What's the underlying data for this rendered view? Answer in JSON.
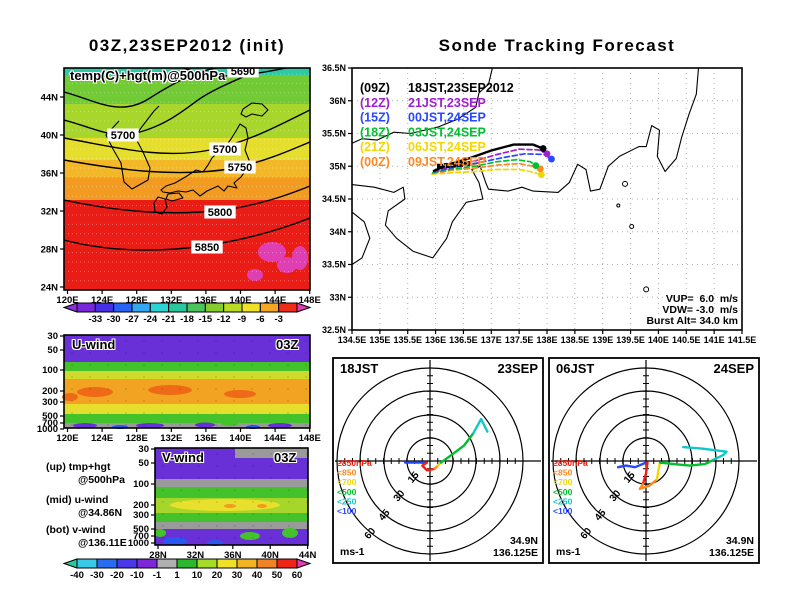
{
  "chart_data": [
    {
      "name": "map-500hpa",
      "type": "heatmap",
      "title": "03Z,23SEP2012 (init)",
      "field_label": "temp(C)+hgt(m)@500hPa",
      "x_ticks": [
        "120E",
        "124E",
        "128E",
        "132E",
        "136E",
        "140E",
        "144E",
        "148E"
      ],
      "y_ticks": [
        "44N",
        "40N",
        "36N",
        "32N",
        "28N",
        "24N"
      ],
      "contour_labels": [
        "5690",
        "5700",
        "5700",
        "5750",
        "5800",
        "5850"
      ],
      "height_contours_m": [
        5690,
        5700,
        5750,
        5800,
        5850
      ],
      "temp_range_c": "-33 to -3",
      "colorbar": {
        "units": "degC",
        "labels": [
          "-33",
          "-30",
          "-27",
          "-24",
          "-21",
          "-18",
          "-15",
          "-12",
          "-9",
          "-6",
          "-3"
        ],
        "arrow_left_color": "#8a30e0",
        "segment_colors": [
          "#7828d8",
          "#4530e8",
          "#2a62f5",
          "#35a6f2",
          "#2cd4d4",
          "#2ac89e",
          "#4cc45e",
          "#84cc30",
          "#b8dc24",
          "#f0e028",
          "#f5a623",
          "#ef2c1a"
        ],
        "arrow_right_color": "#e03cb8"
      }
    },
    {
      "name": "sonde-tracking",
      "type": "line",
      "title": "Sonde Tracking Forecast",
      "x_ticks": [
        "134.5E",
        "135E",
        "135.5E",
        "136E",
        "136.5E",
        "137E",
        "137.5E",
        "138E",
        "138.5E",
        "139E",
        "139.5E",
        "140E",
        "140.5E",
        "141E",
        "141.5E"
      ],
      "y_ticks": [
        "36.5N",
        "36N",
        "35.5N",
        "35N",
        "34.5N",
        "34N",
        "33.5N",
        "33N",
        "32.5N"
      ],
      "legend": [
        {
          "code": "(09Z)",
          "label": "18JST,23SEP2012",
          "color": "#000000"
        },
        {
          "code": "(12Z)",
          "label": "21JST,23SEP",
          "color": "#a020d0"
        },
        {
          "code": "(15Z)",
          "label": "00JST,24SEP",
          "color": "#2848ff"
        },
        {
          "code": "(18Z)",
          "label": "03JST,24SEP",
          "color": "#00c030"
        },
        {
          "code": "(21Z)",
          "label": "06JST,24SEP",
          "color": "#f0d800"
        },
        {
          "code": "(00Z)",
          "label": "09JST,24SEP",
          "color": "#ff8820"
        }
      ],
      "trajectories": [
        {
          "name": "21JST",
          "color": "#f0d800",
          "dashed": true,
          "points": [
            [
              135.93,
              34.88
            ],
            [
              136.3,
              34.9
            ],
            [
              136.7,
              34.92
            ],
            [
              137.1,
              34.95
            ],
            [
              137.5,
              34.95
            ],
            [
              137.75,
              34.91
            ],
            [
              137.9,
              34.87
            ]
          ]
        },
        {
          "name": "09JST",
          "color": "#ff8820",
          "dashed": true,
          "points": [
            [
              135.95,
              34.89
            ],
            [
              136.3,
              34.94
            ],
            [
              136.7,
              34.97
            ],
            [
              137.15,
              35.02
            ],
            [
              137.5,
              35.04
            ],
            [
              137.75,
              35.0
            ],
            [
              137.88,
              34.96
            ]
          ]
        },
        {
          "name": "03JST",
          "color": "#00c030",
          "dashed": true,
          "points": [
            [
              135.95,
              34.9
            ],
            [
              136.3,
              34.96
            ],
            [
              136.7,
              35.0
            ],
            [
              137.1,
              35.07
            ],
            [
              137.45,
              35.1
            ],
            [
              137.7,
              35.07
            ],
            [
              137.8,
              35.01
            ]
          ]
        },
        {
          "name": "00JST",
          "color": "#2848ff",
          "dashed": true,
          "points": [
            [
              135.97,
              34.91
            ],
            [
              136.35,
              34.99
            ],
            [
              136.75,
              35.05
            ],
            [
              137.2,
              35.13
            ],
            [
              137.6,
              35.19
            ],
            [
              137.95,
              35.18
            ],
            [
              138.08,
              35.11
            ]
          ]
        },
        {
          "name": "21JST23",
          "color": "#a020d0",
          "dashed": true,
          "points": [
            [
              135.97,
              34.92
            ],
            [
              136.3,
              35.0
            ],
            [
              136.7,
              35.08
            ],
            [
              137.1,
              35.18
            ],
            [
              137.5,
              35.26
            ],
            [
              137.85,
              35.25
            ],
            [
              138.0,
              35.19
            ]
          ]
        },
        {
          "name": "18JST",
          "color": "#000000",
          "dashed": false,
          "points": [
            [
              135.97,
              34.93
            ],
            [
              136.25,
              35.03
            ],
            [
              136.6,
              35.12
            ],
            [
              137.0,
              35.24
            ],
            [
              137.4,
              35.33
            ],
            [
              137.75,
              35.33
            ],
            [
              137.93,
              35.27
            ]
          ]
        }
      ],
      "launch_markers": [
        [
          136.08,
          35.0
        ],
        [
          136.2,
          35.01
        ],
        [
          136.32,
          35.02
        ],
        [
          136.44,
          35.03
        ],
        [
          136.56,
          35.04
        ]
      ],
      "annotations": {
        "vup": "VUP=  6.0  m/s",
        "vdw": "VDW= -3.0  m/s",
        "burst": "Burst Alt= 34.0 km"
      }
    },
    {
      "name": "u-wind-section",
      "type": "heatmap",
      "label": "U-wind",
      "time": "03Z",
      "x_ticks": [
        "120E",
        "124E",
        "128E",
        "132E",
        "136E",
        "140E",
        "144E",
        "148E"
      ],
      "y_ticks": [
        "30",
        "50",
        "100",
        "200",
        "300",
        "500",
        "700",
        "1000"
      ],
      "approx_bands": [
        {
          "pressure_hpa": "30-80",
          "u_ms": "-20 to -10"
        },
        {
          "pressure_hpa": "100",
          "u_ms": "1 to 10"
        },
        {
          "pressure_hpa": "150-300",
          "u_ms": "30 to 50"
        },
        {
          "pressure_hpa": "300-500",
          "u_ms": "20 to 30"
        },
        {
          "pressure_hpa": "500-700",
          "u_ms": "1 to 10"
        },
        {
          "pressure_hpa": "700-1000",
          "u_ms": "-10 to 1"
        }
      ]
    },
    {
      "name": "v-wind-section",
      "type": "heatmap",
      "label": "V-wind",
      "time": "03Z",
      "x_ticks": [
        "28N",
        "32N",
        "36N",
        "40N",
        "44N"
      ],
      "y_ticks": [
        "30",
        "50",
        "100",
        "200",
        "300",
        "500",
        "700",
        "1000"
      ],
      "approx_bands": [
        {
          "pressure_hpa": "30-100",
          "v_ms": "-10 to -1"
        },
        {
          "pressure_hpa": "100-150",
          "v_ms": "-1 to 10"
        },
        {
          "pressure_hpa": "200-300",
          "v_ms": "10 to 30"
        },
        {
          "pressure_hpa": "300-500",
          "v_ms": "1 to 10"
        },
        {
          "pressure_hpa": "500-1000",
          "v_ms": "-10 to -1"
        }
      ],
      "colorbar": {
        "units": "m/s",
        "labels": [
          "-40",
          "-30",
          "-20",
          "-10",
          "-1",
          "1",
          "10",
          "20",
          "30",
          "40",
          "50",
          "60"
        ],
        "arrow_left_color": "#2ac89e",
        "segment_colors": [
          "#38c8e8",
          "#2a6cf0",
          "#4838e8",
          "#7c28d8",
          "#b0b0b0",
          "#2cb82c",
          "#a4dc28",
          "#f0e028",
          "#f0b424",
          "#f08424",
          "#ee2418"
        ],
        "arrow_right_color": "#e03cb8"
      }
    },
    {
      "name": "hodograph-18jst",
      "type": "scatter",
      "time": "18JST",
      "date": "23SEP",
      "unit": "ms-1",
      "site": {
        "lat": "34.9N",
        "lon": "136.125E"
      },
      "ring_labels": [
        "15",
        "30",
        "45",
        "60"
      ],
      "legend": [
        {
          "label": "≥850hPa",
          "color": "#ee2010"
        },
        {
          "label": "<850",
          "color": "#ff8820"
        },
        {
          "label": "<700",
          "color": "#f0d800"
        },
        {
          "label": "<500",
          "color": "#00c030"
        },
        {
          "label": "<250",
          "color": "#10c8c8"
        },
        {
          "label": "<100",
          "color": "#2848ff"
        }
      ],
      "trace": [
        {
          "level": "<100",
          "color": "#2848ff",
          "points": [
            [
              -16,
              -1
            ],
            [
              -7,
              -1
            ],
            [
              -2,
              -1
            ]
          ]
        },
        {
          "level": ">=850",
          "color": "#ee2010",
          "points": [
            [
              -2,
              -1
            ],
            [
              -5,
              -3
            ],
            [
              -2,
              -6
            ],
            [
              3,
              -5
            ]
          ]
        },
        {
          "level": "<850",
          "color": "#ff8820",
          "points": [
            [
              3,
              -5
            ],
            [
              5,
              -3
            ]
          ]
        },
        {
          "level": "<700",
          "color": "#f0d800",
          "points": [
            [
              5,
              -3
            ],
            [
              7,
              -1
            ]
          ]
        },
        {
          "level": "<500",
          "color": "#00c030",
          "points": [
            [
              7,
              -1
            ],
            [
              14,
              4
            ],
            [
              22,
              10
            ],
            [
              28,
              18
            ]
          ]
        },
        {
          "level": "<250",
          "color": "#10c8c8",
          "points": [
            [
              28,
              18
            ],
            [
              33,
              27
            ],
            [
              37,
              19
            ]
          ]
        }
      ]
    },
    {
      "name": "hodograph-06jst",
      "type": "scatter",
      "time": "06JST",
      "date": "24SEP",
      "unit": "ms-1",
      "site": {
        "lat": "34.9N",
        "lon": "136.125E"
      },
      "ring_labels": [
        "15",
        "30",
        "45",
        "60"
      ],
      "legend": [
        {
          "label": "≥850hPa",
          "color": "#ee2010"
        },
        {
          "label": "<850",
          "color": "#ff8820"
        },
        {
          "label": "<700",
          "color": "#f0d800"
        },
        {
          "label": "<500",
          "color": "#00c030"
        },
        {
          "label": "<250",
          "color": "#10c8c8"
        },
        {
          "label": "<100",
          "color": "#2848ff"
        }
      ],
      "trace": [
        {
          "level": "<100",
          "color": "#2848ff",
          "points": [
            [
              0,
              -1
            ],
            [
              -7,
              -4
            ],
            [
              -13,
              -3
            ],
            [
              -18,
              -4
            ]
          ]
        },
        {
          "level": ">=850",
          "color": "#ee2010",
          "points": [
            [
              1,
              -1
            ],
            [
              0,
              -8
            ],
            [
              -2,
              -15
            ]
          ]
        },
        {
          "level": "<850",
          "color": "#ff8820",
          "points": [
            [
              -2,
              -15
            ],
            [
              -4,
              -18
            ],
            [
              2,
              -16
            ],
            [
              7,
              -12
            ]
          ]
        },
        {
          "level": "<700",
          "color": "#f0d800",
          "points": [
            [
              7,
              -12
            ],
            [
              8,
              -6
            ],
            [
              9,
              -1
            ]
          ]
        },
        {
          "level": "<500",
          "color": "#00c030",
          "points": [
            [
              9,
              -1
            ],
            [
              18,
              -2
            ],
            [
              28,
              -3
            ],
            [
              38,
              -2
            ],
            [
              44,
              1
            ]
          ]
        },
        {
          "level": "<250",
          "color": "#10c8c8",
          "points": [
            [
              44,
              1
            ],
            [
              50,
              4
            ],
            [
              52,
              6
            ],
            [
              36,
              8
            ],
            [
              24,
              9
            ]
          ]
        }
      ]
    }
  ],
  "side_notes": {
    "up_label": "(up) tmp+hgt",
    "up_value": "@500hPa",
    "mid_label": "(mid) u-wind",
    "mid_value": "@34.86N",
    "bot_label": "(bot) v-wind",
    "bot_value": "@136.11E"
  }
}
